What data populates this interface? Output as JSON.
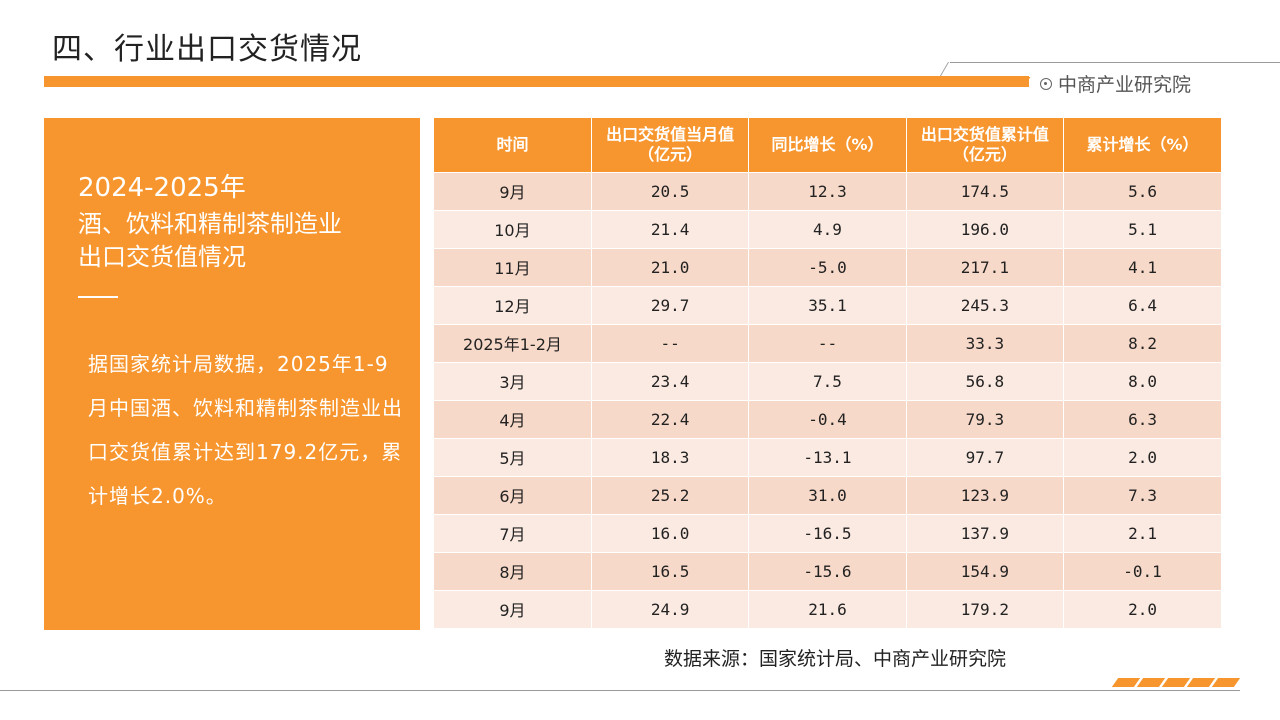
{
  "page": {
    "title": "四、行业出口交货情况",
    "brand": "中商产业研究院",
    "brand_icon": "target-circle-icon",
    "accent_color": "#f7962e",
    "source": "数据来源：国家统计局、中商产业研究院"
  },
  "panel": {
    "years": "2024-2025年",
    "subtitle_line1": "酒、饮料和精制茶制造业",
    "subtitle_line2": "出口交货值情况",
    "body": "据国家统计局数据，2025年1-9月中国酒、饮料和精制茶制造业出口交货值累计达到179.2亿元，累计增长2.0%。"
  },
  "table": {
    "headers": [
      "时间",
      "出口交货值当月值（亿元）",
      "同比增长（%）",
      "出口交货值累计值（亿元）",
      "累计增长（%）"
    ],
    "rows": [
      [
        "9月",
        "20.5",
        "12.3",
        "174.5",
        "5.6"
      ],
      [
        "10月",
        "21.4",
        "4.9",
        "196.0",
        "5.1"
      ],
      [
        "11月",
        "21.0",
        "-5.0",
        "217.1",
        "4.1"
      ],
      [
        "12月",
        "29.7",
        "35.1",
        "245.3",
        "6.4"
      ],
      [
        "2025年1-2月",
        "--",
        "--",
        "33.3",
        "8.2"
      ],
      [
        "3月",
        "23.4",
        "7.5",
        "56.8",
        "8.0"
      ],
      [
        "4月",
        "22.4",
        "-0.4",
        "79.3",
        "6.3"
      ],
      [
        "5月",
        "18.3",
        "-13.1",
        "97.7",
        "2.0"
      ],
      [
        "6月",
        "25.2",
        "31.0",
        "123.9",
        "7.3"
      ],
      [
        "7月",
        "16.0",
        "-16.5",
        "137.9",
        "2.1"
      ],
      [
        "8月",
        "16.5",
        "-15.6",
        "154.9",
        "-0.1"
      ],
      [
        "9月",
        "24.9",
        "21.6",
        "179.2",
        "2.0"
      ]
    ]
  }
}
